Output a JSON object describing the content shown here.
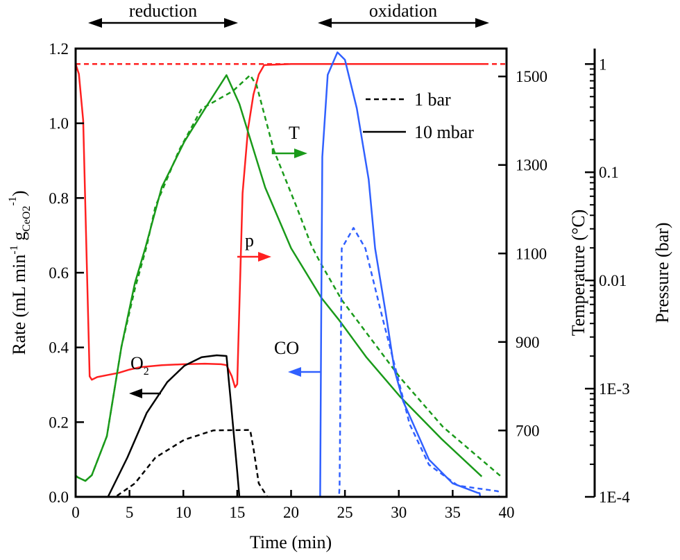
{
  "chart_data": {
    "type": "line",
    "xlabel": "Time (min)",
    "ylabel": {
      "main": "Rate (mL min",
      "sup1": "-1",
      "mid": " g",
      "sub": "CeO2",
      "sup2": "-1",
      "end": ")"
    },
    "y2label": "Temperature (°C)",
    "y3label": "Pressure (bar)",
    "xlim": [
      0,
      40
    ],
    "ylim": [
      0,
      1.2
    ],
    "y2lim": [
      550,
      1563
    ],
    "y3lim": [
      0.0001,
      1.39
    ],
    "y3scale": "log",
    "grid": false,
    "x_ticks": [
      "0",
      "5",
      "10",
      "15",
      "20",
      "25",
      "30",
      "35",
      "40"
    ],
    "y_ticks": [
      "0.0",
      "0.2",
      "0.4",
      "0.6",
      "0.8",
      "1.0",
      "1.2"
    ],
    "y2_ticks": [
      "700",
      "900",
      "1100",
      "1300",
      "1500"
    ],
    "y3_ticks": [
      "1E-4",
      "1E-3",
      "0.01",
      "0.1",
      "1"
    ],
    "phases": [
      {
        "label": "reduction",
        "from": 1,
        "to": 15
      },
      {
        "label": "oxidation",
        "from": 22.5,
        "to": 38.5
      }
    ],
    "legend": {
      "placement": "top-right",
      "entries": [
        {
          "label": "1 bar",
          "style": "dashed"
        },
        {
          "label": "10 mbar",
          "style": "solid"
        }
      ]
    },
    "annotations": {
      "p": "p",
      "T": "T",
      "O2": "O",
      "O2_sub": "2",
      "CO": "CO"
    },
    "colors": {
      "p": "#ff2020",
      "T": "#1a9a1a",
      "CO": "#3060ff",
      "O2": "#000000"
    },
    "series": [
      {
        "id": "p-10mbar",
        "axis": "y3",
        "color": "#ff2020",
        "dash": false,
        "points": [
          [
            0,
            1
          ],
          [
            0.3,
            0.81
          ],
          [
            0.7,
            0.3
          ],
          [
            1.0,
            0.02
          ],
          [
            1.3,
            0.0013
          ],
          [
            1.5,
            0.00121
          ],
          [
            2,
            0.00128
          ],
          [
            3,
            0.00134
          ],
          [
            4,
            0.0014
          ],
          [
            5,
            0.0015
          ],
          [
            6,
            0.00158
          ],
          [
            8,
            0.00165
          ],
          [
            10,
            0.00168
          ],
          [
            12,
            0.0017
          ],
          [
            13.5,
            0.00168
          ],
          [
            14,
            0.00165
          ],
          [
            14.5,
            0.0013
          ],
          [
            14.8,
            0.00103
          ],
          [
            15.0,
            0.0011
          ],
          [
            15.1,
            0.0025
          ],
          [
            15.5,
            0.064
          ],
          [
            16,
            0.25
          ],
          [
            16.5,
            0.52
          ],
          [
            17,
            0.8
          ],
          [
            17.5,
            0.98
          ],
          [
            20,
            1
          ],
          [
            30,
            1
          ],
          [
            38,
            1
          ]
        ]
      },
      {
        "id": "p-1bar",
        "axis": "y3",
        "color": "#ff2020",
        "dash": true,
        "points": [
          [
            0,
            1
          ],
          [
            40,
            1
          ]
        ]
      },
      {
        "id": "T-10mbar",
        "axis": "y2",
        "color": "#1a9a1a",
        "dash": false,
        "points": [
          [
            0,
            598
          ],
          [
            0.2,
            594
          ],
          [
            0.9,
            586
          ],
          [
            1.5,
            599
          ],
          [
            2.9,
            687
          ],
          [
            4.25,
            889
          ],
          [
            5.5,
            1033
          ],
          [
            6.5,
            1115
          ],
          [
            8,
            1250
          ],
          [
            10.1,
            1353
          ],
          [
            12,
            1427
          ],
          [
            14,
            1503
          ],
          [
            15.2,
            1438
          ],
          [
            17.6,
            1249
          ],
          [
            20,
            1112
          ],
          [
            22.8,
            1000
          ],
          [
            24.5,
            948
          ],
          [
            27,
            865
          ],
          [
            30.1,
            777
          ],
          [
            34,
            680
          ],
          [
            37.7,
            596
          ]
        ]
      },
      {
        "id": "T-1bar",
        "axis": "y2",
        "color": "#1a9a1a",
        "dash": true,
        "points": [
          [
            0,
            598
          ],
          [
            0.2,
            594
          ],
          [
            0.9,
            586
          ],
          [
            1.5,
            599
          ],
          [
            2.9,
            687
          ],
          [
            4.25,
            889
          ],
          [
            5.5,
            1020
          ],
          [
            6.6,
            1117
          ],
          [
            7.4,
            1206
          ],
          [
            9.6,
            1333
          ],
          [
            11.7,
            1427
          ],
          [
            14.6,
            1467
          ],
          [
            16.2,
            1503
          ],
          [
            16.8,
            1480
          ],
          [
            18.4,
            1333
          ],
          [
            20.5,
            1206
          ],
          [
            21.9,
            1117
          ],
          [
            22.7,
            1080
          ],
          [
            24.7,
            995
          ],
          [
            30.1,
            820
          ],
          [
            34.1,
            708
          ],
          [
            39.5,
            596
          ]
        ]
      },
      {
        "id": "CO-10mbar",
        "axis": "y",
        "color": "#3060ff",
        "dash": false,
        "points": [
          [
            0,
            0
          ],
          [
            22.7,
            0
          ],
          [
            22.8,
            0.5
          ],
          [
            22.9,
            0.91
          ],
          [
            23.4,
            1.13
          ],
          [
            24.3,
            1.19
          ],
          [
            25,
            1.17
          ],
          [
            26.1,
            1.04
          ],
          [
            27.2,
            0.85
          ],
          [
            27.8,
            0.665
          ],
          [
            28.8,
            0.49
          ],
          [
            29.6,
            0.34
          ],
          [
            30.4,
            0.256
          ],
          [
            32.8,
            0.1
          ],
          [
            35,
            0.036
          ],
          [
            37.3,
            0.011
          ],
          [
            37.5,
            0.01
          ],
          [
            37.55,
            0
          ]
        ]
      },
      {
        "id": "CO-1bar",
        "axis": "y",
        "color": "#3060ff",
        "dash": true,
        "points": [
          [
            0,
            0
          ],
          [
            24.45,
            0
          ],
          [
            24.5,
            0.03
          ],
          [
            24.7,
            0.665
          ],
          [
            25.8,
            0.72
          ],
          [
            26.9,
            0.665
          ],
          [
            28.5,
            0.477
          ],
          [
            29.9,
            0.32
          ],
          [
            31,
            0.195
          ],
          [
            32.8,
            0.086
          ],
          [
            35.5,
            0.03
          ],
          [
            39.2,
            0.015
          ],
          [
            39.3,
            0
          ]
        ]
      },
      {
        "id": "O2-10mbar",
        "axis": "y",
        "color": "#000000",
        "dash": false,
        "points": [
          [
            0,
            0
          ],
          [
            3.0,
            0
          ],
          [
            4.8,
            0.105
          ],
          [
            6.6,
            0.225
          ],
          [
            8.5,
            0.307
          ],
          [
            10.1,
            0.351
          ],
          [
            11.7,
            0.374
          ],
          [
            13.1,
            0.379
          ],
          [
            14.0,
            0.377
          ],
          [
            14.4,
            0.256
          ],
          [
            15.0,
            0.067
          ],
          [
            15.2,
            0
          ]
        ]
      },
      {
        "id": "O2-1bar",
        "axis": "y",
        "color": "#000000",
        "dash": true,
        "points": [
          [
            0,
            0
          ],
          [
            3.7,
            0
          ],
          [
            5.5,
            0.036
          ],
          [
            7.4,
            0.105
          ],
          [
            10.1,
            0.153
          ],
          [
            12.8,
            0.178
          ],
          [
            16.2,
            0.179
          ],
          [
            16.5,
            0.131
          ],
          [
            17.0,
            0.036
          ],
          [
            17.8,
            0
          ]
        ]
      }
    ]
  }
}
